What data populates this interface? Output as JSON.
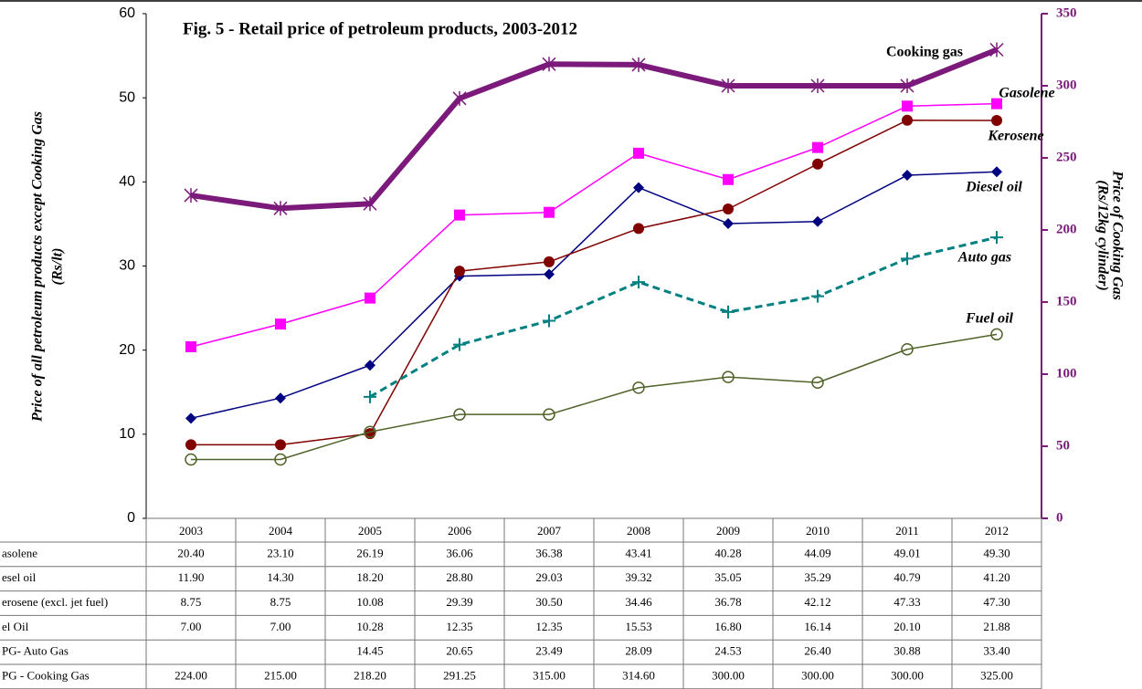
{
  "chart_data": {
    "type": "line",
    "title": "Fig. 5 - Retail price of petroleum products, 2003-2012",
    "y_label": [
      "Price of all petroleum products except Cooking Gas",
      "(Rs/lt)"
    ],
    "y2_label": [
      "Price of Cooking Gas",
      "(Rs/12kg cylinder)"
    ],
    "categories": [
      "2003",
      "2004",
      "2005",
      "2006",
      "2007",
      "2008",
      "2009",
      "2010",
      "2011",
      "2012"
    ],
    "ylim": [
      0,
      60
    ],
    "yticks": [
      0,
      10,
      20,
      30,
      40,
      50,
      60
    ],
    "y2lim": [
      0,
      350
    ],
    "y2ticks": [
      0,
      50,
      100,
      150,
      200,
      250,
      300,
      350
    ],
    "series": [
      {
        "name": "Gasolene",
        "row_label": "asolene",
        "color": "#ff00ff",
        "marker": "square",
        "width": 1.5,
        "values": [
          20.4,
          23.1,
          26.19,
          36.06,
          36.38,
          43.41,
          40.28,
          44.09,
          49.01,
          49.3
        ],
        "value_labels": [
          "20.40",
          "23.10",
          "26.19",
          "36.06",
          "36.38",
          "43.41",
          "40.28",
          "44.09",
          "49.01",
          "49.30"
        ]
      },
      {
        "name": "Diesel oil",
        "row_label": "esel oil",
        "color": "#000080",
        "marker": "diamond",
        "width": 1.5,
        "values": [
          11.9,
          14.3,
          18.2,
          28.8,
          29.03,
          39.32,
          35.05,
          35.29,
          40.79,
          41.2
        ],
        "value_labels": [
          "11.90",
          "14.30",
          "18.20",
          "28.80",
          "29.03",
          "39.32",
          "35.05",
          "35.29",
          "40.79",
          "41.20"
        ]
      },
      {
        "name": "Kerosene",
        "row_label": "erosene (excl. jet fuel)",
        "color": "#800000",
        "marker": "circle",
        "width": 1.5,
        "values": [
          8.75,
          8.75,
          10.08,
          29.39,
          30.5,
          34.46,
          36.78,
          42.12,
          47.33,
          47.3
        ],
        "value_labels": [
          "8.75",
          "8.75",
          "10.08",
          "29.39",
          "30.50",
          "34.46",
          "36.78",
          "42.12",
          "47.33",
          "47.30"
        ]
      },
      {
        "name": "Fuel oil",
        "row_label": "el Oil",
        "color": "#4f6228",
        "marker": "open-circle",
        "width": 1.5,
        "values": [
          7.0,
          7.0,
          10.28,
          12.35,
          12.35,
          15.53,
          16.8,
          16.14,
          20.1,
          21.88
        ],
        "value_labels": [
          "7.00",
          "7.00",
          "10.28",
          "12.35",
          "12.35",
          "15.53",
          "16.80",
          "16.14",
          "20.10",
          "21.88"
        ]
      },
      {
        "name": "Auto gas",
        "row_label": "PG- Auto Gas",
        "color": "#008080",
        "marker": "plus",
        "width": 3,
        "dashed": true,
        "values": [
          null,
          null,
          14.45,
          20.65,
          23.49,
          28.09,
          24.53,
          26.4,
          30.88,
          33.4
        ],
        "value_labels": [
          null,
          null,
          "14.45",
          "20.65",
          "23.49",
          "28.09",
          "24.53",
          "26.40",
          "30.88",
          "33.40"
        ]
      },
      {
        "name": "Cooking gas",
        "row_label": "PG - Cooking Gas",
        "color": "#7b1a7b",
        "marker": "asterisk",
        "width": 6,
        "axis": "y2",
        "values": [
          224,
          215,
          218.2,
          291.25,
          315,
          314.6,
          300,
          300,
          300,
          325
        ],
        "value_labels": [
          "224.00",
          "215.00",
          "218.20",
          "291.25",
          "315.00",
          "314.60",
          "300.00",
          "300.00",
          "300.00",
          "325.00"
        ]
      }
    ]
  }
}
